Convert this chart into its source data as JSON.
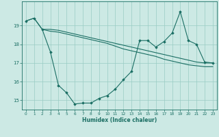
{
  "xlabel": "Humidex (Indice chaleur)",
  "bg_color": "#cce9e4",
  "line_color": "#1a6e63",
  "grid_color": "#99ccc4",
  "xlim": [
    -0.5,
    23.5
  ],
  "ylim": [
    14.5,
    20.3
  ],
  "yticks": [
    15,
    16,
    17,
    18,
    19
  ],
  "xticks": [
    0,
    1,
    2,
    3,
    4,
    5,
    6,
    7,
    8,
    9,
    10,
    11,
    12,
    13,
    14,
    15,
    16,
    17,
    18,
    19,
    20,
    21,
    22,
    23
  ],
  "line1_x": [
    0,
    1,
    2,
    3,
    4,
    5,
    6,
    7,
    8,
    9,
    10,
    11,
    12,
    13,
    14,
    15,
    16,
    17,
    18,
    19,
    20,
    21,
    22,
    23
  ],
  "line1_y": [
    19.25,
    19.4,
    18.8,
    18.8,
    18.75,
    18.65,
    18.55,
    18.45,
    18.35,
    18.25,
    18.15,
    18.05,
    17.95,
    17.85,
    17.75,
    17.65,
    17.55,
    17.45,
    17.35,
    17.25,
    17.15,
    17.05,
    17.0,
    17.0
  ],
  "line2_x": [
    2,
    3,
    4,
    5,
    6,
    7,
    8,
    9,
    10,
    11,
    12,
    13,
    14,
    15,
    16,
    17,
    18,
    19,
    20,
    21,
    22,
    23
  ],
  "line2_y": [
    18.8,
    18.7,
    18.65,
    18.55,
    18.45,
    18.35,
    18.25,
    18.15,
    18.05,
    17.9,
    17.75,
    17.65,
    17.55,
    17.45,
    17.35,
    17.2,
    17.1,
    17.0,
    16.9,
    16.85,
    16.8,
    16.8
  ],
  "line3_x": [
    0,
    1,
    2,
    3,
    4,
    5,
    6,
    7,
    8,
    9,
    10,
    11,
    12,
    13,
    14,
    15,
    16,
    17,
    18,
    19,
    20,
    21,
    22,
    23
  ],
  "line3_y": [
    19.25,
    19.4,
    18.8,
    17.6,
    15.8,
    15.4,
    14.8,
    14.85,
    14.85,
    15.1,
    15.25,
    15.6,
    16.1,
    16.55,
    18.2,
    18.2,
    17.85,
    18.15,
    18.6,
    19.75,
    18.2,
    18.0,
    17.05,
    17.0
  ]
}
